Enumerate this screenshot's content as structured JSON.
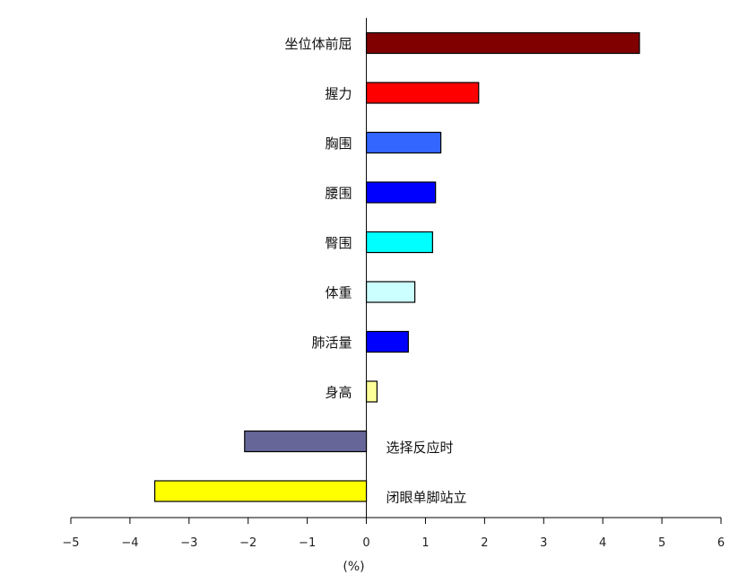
{
  "chart_data": {
    "type": "bar",
    "orientation": "horizontal",
    "xlabel": "(%)",
    "xlim": [
      -5,
      6
    ],
    "xticks": [
      -5,
      -4,
      -3,
      -2,
      -1,
      0,
      1,
      2,
      3,
      4,
      5,
      6
    ],
    "xtick_labels": [
      "−5",
      "−4",
      "−3",
      "−2",
      "−1",
      "0",
      "1",
      "2",
      "3",
      "4",
      "5",
      "6"
    ],
    "grid": false,
    "categories": [
      "坐位体前屈",
      "握力",
      "胸围",
      "腰围",
      "臀围",
      "体重",
      "肺活量",
      "身高",
      "选择反应时",
      "闭眼单脚站立"
    ],
    "values": [
      4.62,
      1.9,
      1.26,
      1.17,
      1.12,
      0.82,
      0.71,
      0.18,
      -2.06,
      -3.58
    ],
    "colors": [
      "#800000",
      "#ff0000",
      "#3366ff",
      "#0000ff",
      "#00ffff",
      "#ccffff",
      "#0000ff",
      "#ffff99",
      "#666699",
      "#ffff00"
    ]
  }
}
